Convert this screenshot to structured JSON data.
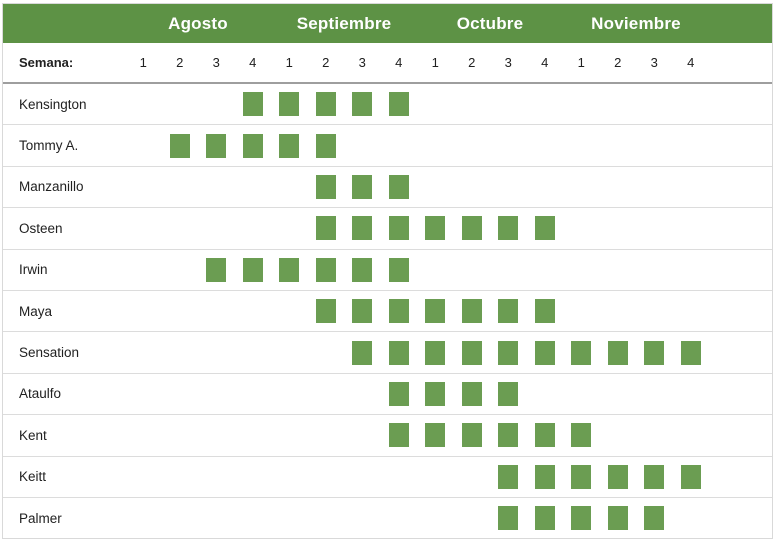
{
  "header": {
    "months": [
      "Agosto",
      "Septiembre",
      "Octubre",
      "Noviembre"
    ],
    "semana_label": "Semana:",
    "week_numbers": [
      "1",
      "2",
      "3",
      "4",
      "1",
      "2",
      "3",
      "4",
      "1",
      "2",
      "3",
      "4",
      "1",
      "2",
      "3",
      "4"
    ]
  },
  "chart_data": {
    "type": "heatmap",
    "title": "",
    "x_months": [
      "Agosto",
      "Septiembre",
      "Octubre",
      "Noviembre"
    ],
    "weeks_per_month": 4,
    "x_labels": [
      "Agosto 1",
      "Agosto 2",
      "Agosto 3",
      "Agosto 4",
      "Septiembre 1",
      "Septiembre 2",
      "Septiembre 3",
      "Septiembre 4",
      "Octubre 1",
      "Octubre 2",
      "Octubre 3",
      "Octubre 4",
      "Noviembre 1",
      "Noviembre 2",
      "Noviembre 3",
      "Noviembre 4"
    ],
    "value_meaning": "1 = cuadro verde (disponible esa semana), 0 = vacio",
    "rows": [
      {
        "name": "Kensington",
        "values": [
          0,
          0,
          0,
          1,
          1,
          1,
          1,
          1,
          0,
          0,
          0,
          0,
          0,
          0,
          0,
          0
        ]
      },
      {
        "name": "Tommy A.",
        "values": [
          0,
          1,
          1,
          1,
          1,
          1,
          0,
          0,
          0,
          0,
          0,
          0,
          0,
          0,
          0,
          0
        ]
      },
      {
        "name": "Manzanillo",
        "values": [
          0,
          0,
          0,
          0,
          0,
          1,
          1,
          1,
          0,
          0,
          0,
          0,
          0,
          0,
          0,
          0
        ]
      },
      {
        "name": "Osteen",
        "values": [
          0,
          0,
          0,
          0,
          0,
          1,
          1,
          1,
          1,
          1,
          1,
          1,
          0,
          0,
          0,
          0
        ]
      },
      {
        "name": "Irwin",
        "values": [
          0,
          0,
          1,
          1,
          1,
          1,
          1,
          1,
          0,
          0,
          0,
          0,
          0,
          0,
          0,
          0
        ]
      },
      {
        "name": "Maya",
        "values": [
          0,
          0,
          0,
          0,
          0,
          1,
          1,
          1,
          1,
          1,
          1,
          1,
          0,
          0,
          0,
          0
        ]
      },
      {
        "name": "Sensation",
        "values": [
          0,
          0,
          0,
          0,
          0,
          0,
          1,
          1,
          1,
          1,
          1,
          1,
          1,
          1,
          1,
          1
        ]
      },
      {
        "name": "Ataulfo",
        "values": [
          0,
          0,
          0,
          0,
          0,
          0,
          0,
          1,
          1,
          1,
          1,
          0,
          0,
          0,
          0,
          0
        ]
      },
      {
        "name": "Kent",
        "values": [
          0,
          0,
          0,
          0,
          0,
          0,
          0,
          1,
          1,
          1,
          1,
          1,
          1,
          0,
          0,
          0
        ]
      },
      {
        "name": "Keitt",
        "values": [
          0,
          0,
          0,
          0,
          0,
          0,
          0,
          0,
          0,
          0,
          1,
          1,
          1,
          1,
          1,
          1
        ]
      },
      {
        "name": "Palmer",
        "values": [
          0,
          0,
          0,
          0,
          0,
          0,
          0,
          0,
          0,
          0,
          1,
          1,
          1,
          1,
          1,
          0
        ]
      }
    ]
  },
  "colors": {
    "header_bg": "#5d9245",
    "header_text": "#ffffff",
    "square": "#6b9d52",
    "row_divider": "#dcdcdc",
    "semana_divider": "#9e9e9e",
    "table_border": "#d9d9d9",
    "text": "#212121"
  }
}
